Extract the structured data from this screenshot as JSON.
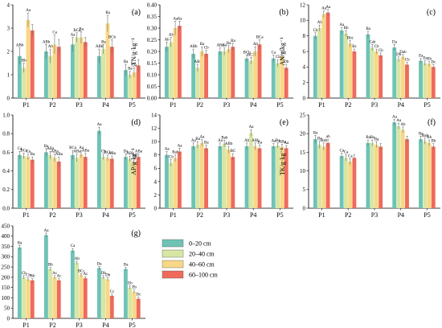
{
  "legend": {
    "items": [
      {
        "label": "0–20 cm",
        "color": "#6ec3b5"
      },
      {
        "label": "20–40 cm",
        "color": "#d7e6a4"
      },
      {
        "label": "40–60 cm",
        "color": "#f7d887"
      },
      {
        "label": "60–100 cm",
        "color": "#ef6a5a"
      }
    ]
  },
  "chart_data": [
    {
      "type": "bar",
      "panel": "(a)",
      "ylabel": "SOM/g·kg⁻¹",
      "categories": [
        "P1",
        "P2",
        "P3",
        "P4",
        "P5"
      ],
      "ylim": [
        0,
        4
      ],
      "yticks": [
        0,
        1,
        2,
        3,
        4
      ],
      "ytick_labels": [
        "0",
        "1",
        "2",
        "3",
        "4"
      ],
      "series": [
        {
          "values": [
            1.8,
            2.0,
            2.3,
            1.8,
            1.2
          ],
          "errors": [
            0.35,
            0.3,
            0.3,
            0.3,
            0.25
          ],
          "labels": [
            "ABb",
            "ABb",
            "Aa",
            "ABb",
            "Ba"
          ]
        },
        {
          "values": [
            1.3,
            1.8,
            2.6,
            2.1,
            1.0
          ],
          "errors": [
            0.2,
            0.3,
            0.2,
            0.2,
            0.15
          ],
          "labels": [
            "Bb",
            "Ab",
            "BCa",
            "Ba",
            "Ba"
          ]
        },
        {
          "values": [
            3.35,
            2.3,
            2.6,
            3.2,
            1.1
          ],
          "errors": [
            0.3,
            0.4,
            0.25,
            0.35,
            0.2
          ],
          "labels": [
            "Aa",
            "Ca",
            "Ba",
            "Ba",
            "Da"
          ]
        },
        {
          "values": [
            2.9,
            2.2,
            2.4,
            2.2,
            1.4
          ],
          "errors": [
            0.25,
            0.3,
            0.2,
            0.3,
            0.25
          ],
          "labels": [
            "",
            "",
            "",
            "BCb",
            ""
          ]
        }
      ]
    },
    {
      "type": "bar",
      "panel": "(b)",
      "ylabel": "TN/g·kg⁻¹",
      "categories": [
        "P1",
        "P2",
        "P3",
        "P4",
        "P5"
      ],
      "ylim": [
        0,
        0.4
      ],
      "yticks": [
        0,
        0.05,
        0.1,
        0.15,
        0.2,
        0.25,
        0.3,
        0.35,
        0.4
      ],
      "ytick_labels": [
        "0.00",
        "0.05",
        "0.10",
        "0.15",
        "0.20",
        "0.25",
        "0.30",
        "0.35",
        "0.40"
      ],
      "series": [
        {
          "values": [
            0.22,
            0.19,
            0.2,
            0.17,
            0.17
          ],
          "errors": [
            0.02,
            0.02,
            0.015,
            0.015,
            0.015
          ],
          "labels": [
            "Ab",
            "ABb",
            "ABa",
            "BCb",
            "Ca"
          ]
        },
        {
          "values": [
            0.24,
            0.13,
            0.2,
            0.16,
            0.15
          ],
          "errors": [
            0.02,
            0.015,
            0.015,
            0.015,
            0.015
          ],
          "labels": [
            "Ab",
            "ABc",
            "Ba",
            "BCb",
            "Cb"
          ]
        },
        {
          "values": [
            0.3,
            0.2,
            0.21,
            0.2,
            0.18
          ],
          "errors": [
            0.03,
            0.02,
            0.015,
            0.02,
            0.015
          ],
          "labels": [
            "Aa",
            "Ba",
            "Ba",
            "Ab",
            "Ca"
          ]
        },
        {
          "values": [
            0.31,
            0.19,
            0.22,
            0.23,
            0.13
          ],
          "errors": [
            0.02,
            0.015,
            0.015,
            0.02,
            0.015
          ],
          "labels": [
            "Aa",
            "Cb",
            "Ba",
            "BCa",
            "Db"
          ]
        }
      ]
    },
    {
      "type": "bar",
      "panel": "(c)",
      "ylabel": "AN/g·kg⁻¹",
      "categories": [
        "P1",
        "P2",
        "P3",
        "P4",
        "P5"
      ],
      "ylim": [
        0,
        12
      ],
      "yticks": [
        0,
        2,
        4,
        6,
        8,
        10,
        12
      ],
      "ytick_labels": [
        "0",
        "2",
        "4",
        "6",
        "8",
        "10",
        "12"
      ],
      "series": [
        {
          "values": [
            8.0,
            8.7,
            8.2,
            6.5,
            4.8
          ],
          "errors": [
            0.4,
            0.4,
            0.4,
            0.4,
            0.3
          ],
          "labels": [
            "Cb",
            "Aa",
            "Ba",
            "Da",
            "Ea"
          ]
        },
        {
          "values": [
            9.0,
            8.3,
            6.5,
            5.0,
            4.5
          ],
          "errors": [
            0.4,
            0.4,
            0.4,
            0.3,
            0.3
          ],
          "labels": [
            "Ab",
            "Bb",
            "Cab",
            "Db",
            "Ea"
          ]
        },
        {
          "values": [
            10.8,
            7.0,
            6.0,
            5.3,
            4.4
          ],
          "errors": [
            0.4,
            0.4,
            0.3,
            0.3,
            0.3
          ],
          "labels": [
            "Aa",
            "Bbc",
            "Cb",
            "Dab",
            "Eb"
          ]
        },
        {
          "values": [
            11.0,
            6.0,
            5.5,
            4.3,
            4.0
          ],
          "errors": [
            0.4,
            0.3,
            0.3,
            0.3,
            0.3
          ],
          "labels": [
            "Aa",
            "Bc",
            "Cb",
            "Cb",
            "Dc"
          ]
        }
      ]
    },
    {
      "type": "bar",
      "panel": "(d)",
      "ylabel": "TP/g·kg⁻¹",
      "categories": [
        "P1",
        "P2",
        "P3",
        "P4",
        "P5"
      ],
      "ylim": [
        0,
        1.0
      ],
      "yticks": [
        0,
        0.2,
        0.4,
        0.6,
        0.8,
        1.0
      ],
      "ytick_labels": [
        "0.0",
        "0.2",
        "0.4",
        "0.6",
        "0.8",
        "1.0"
      ],
      "series": [
        {
          "values": [
            0.57,
            0.6,
            0.57,
            0.83,
            0.55
          ],
          "errors": [
            0.04,
            0.04,
            0.05,
            0.04,
            0.03
          ],
          "labels": [
            "Ca",
            "Ba",
            "BCa",
            "Aa",
            "Da"
          ]
        },
        {
          "values": [
            0.56,
            0.57,
            0.54,
            0.55,
            0.53
          ],
          "errors": [
            0.03,
            0.04,
            0.04,
            0.03,
            0.03
          ],
          "labels": [
            "BCa",
            "ABa",
            "ABa",
            "Cb",
            "ABa"
          ]
        },
        {
          "values": [
            0.55,
            0.54,
            0.58,
            0.54,
            0.5
          ],
          "errors": [
            0.03,
            0.04,
            0.04,
            0.03,
            0.03
          ],
          "labels": [
            "Ca",
            "ABa",
            "Aa",
            "BCb",
            "Ba"
          ]
        },
        {
          "values": [
            0.52,
            0.5,
            0.55,
            0.53,
            0.55
          ],
          "errors": [
            0.03,
            0.05,
            0.04,
            0.03,
            0.03
          ],
          "labels": [
            "Ba",
            "ABa",
            "ABa",
            "ABa",
            "ABa"
          ]
        }
      ]
    },
    {
      "type": "bar",
      "panel": "(e)",
      "ylabel": "AP/g·kg⁻¹",
      "categories": [
        "P1",
        "P2",
        "P3",
        "P4",
        "P5"
      ],
      "ylim": [
        0,
        14
      ],
      "yticks": [
        0,
        2,
        4,
        6,
        8,
        10,
        12,
        14
      ],
      "ytick_labels": [
        "0",
        "2",
        "4",
        "6",
        "8",
        "10",
        "12",
        "14"
      ],
      "series": [
        {
          "values": [
            8.0,
            9.3,
            9.3,
            9.3,
            9.3
          ],
          "errors": [
            0.5,
            0.5,
            0.5,
            0.5,
            0.4
          ],
          "labels": [
            "Aa",
            "Aa",
            "Aa",
            "Ab",
            "Aa"
          ]
        },
        {
          "values": [
            6.8,
            9.5,
            9.7,
            11.3,
            9.4
          ],
          "errors": [
            0.5,
            0.5,
            0.5,
            0.5,
            0.4
          ],
          "labels": [
            "Cb",
            "Ba",
            "Bab",
            "Aa",
            "Ba"
          ]
        },
        {
          "values": [
            7.5,
            9.8,
            8.8,
            9.3,
            9.2
          ],
          "errors": [
            0.5,
            0.5,
            0.5,
            0.5,
            0.4
          ],
          "labels": [
            "Bab",
            "Aa",
            "ABb",
            "ABb",
            "ABa"
          ]
        },
        {
          "values": [
            8.5,
            9.0,
            7.7,
            9.0,
            9.0
          ],
          "errors": [
            0.5,
            0.5,
            0.5,
            0.5,
            0.4
          ],
          "labels": [
            "Aa",
            "Ba",
            "BC",
            "Ba",
            "Aa"
          ]
        }
      ]
    },
    {
      "type": "bar",
      "panel": "(f)",
      "ylabel": "TK/g·kg⁻¹",
      "categories": [
        "P1",
        "P2",
        "P3",
        "P4",
        "P5"
      ],
      "ylim": [
        0,
        25
      ],
      "yticks": [
        0,
        5,
        10,
        15,
        20,
        25
      ],
      "ytick_labels": [
        "0",
        "5",
        "10",
        "15",
        "20",
        "25"
      ],
      "series": [
        {
          "values": [
            18.5,
            14.0,
            17.5,
            23.0,
            18.5
          ],
          "errors": [
            1.0,
            0.8,
            0.8,
            0.8,
            0.8
          ],
          "labels": [
            "Ba",
            "Ca",
            "Ba",
            "Aa",
            "Ba"
          ]
        },
        {
          "values": [
            17.0,
            13.5,
            17.5,
            22.0,
            18.0
          ],
          "errors": [
            1.0,
            0.8,
            0.8,
            0.8,
            0.8
          ],
          "labels": [
            "Ba",
            "Ca",
            "Ba",
            "Aa",
            "Bab"
          ]
        },
        {
          "values": [
            16.5,
            12.5,
            17.0,
            21.0,
            17.5
          ],
          "errors": [
            1.0,
            0.8,
            0.8,
            0.8,
            0.8
          ],
          "labels": [
            "Bab",
            "Ca",
            "Ba",
            "Ab",
            "Bb"
          ]
        },
        {
          "values": [
            17.5,
            13.5,
            16.5,
            18.5,
            16.5
          ],
          "errors": [
            1.0,
            0.8,
            0.8,
            0.8,
            0.8
          ],
          "labels": [
            "ab",
            "",
            "",
            "",
            "Bb"
          ]
        }
      ]
    },
    {
      "type": "bar",
      "panel": "(g)",
      "ylabel": "AK/g·kg⁻¹",
      "categories": [
        "P1",
        "P2",
        "P3",
        "P4",
        "P5"
      ],
      "ylim": [
        0,
        450
      ],
      "yticks": [
        0,
        50,
        100,
        150,
        200,
        250,
        300,
        350,
        400,
        450
      ],
      "ytick_labels": [
        "0",
        "50",
        "100",
        "150",
        "200",
        "250",
        "300",
        "350",
        "400",
        "450"
      ],
      "series": [
        {
          "values": [
            345,
            405,
            330,
            245,
            240
          ],
          "errors": [
            10,
            10,
            10,
            8,
            8
          ],
          "labels": [
            "Ba",
            "Aa",
            "Ca",
            "Da",
            "Da"
          ]
        },
        {
          "values": [
            200,
            240,
            270,
            200,
            150
          ],
          "errors": [
            8,
            8,
            8,
            8,
            8
          ],
          "labels": [
            "Cb",
            "Bb",
            "Ab",
            "Db",
            "Eb"
          ]
        },
        {
          "values": [
            190,
            200,
            210,
            190,
            130
          ],
          "errors": [
            8,
            8,
            8,
            8,
            8
          ],
          "labels": [
            "Cb",
            "Ac",
            "BCc",
            "Db",
            "Eb"
          ]
        },
        {
          "values": [
            185,
            185,
            195,
            110,
            95
          ],
          "errors": [
            8,
            8,
            8,
            8,
            8
          ],
          "labels": [
            "Bb",
            "Ac",
            "Ac",
            "Cc",
            "Dc"
          ]
        }
      ]
    }
  ]
}
